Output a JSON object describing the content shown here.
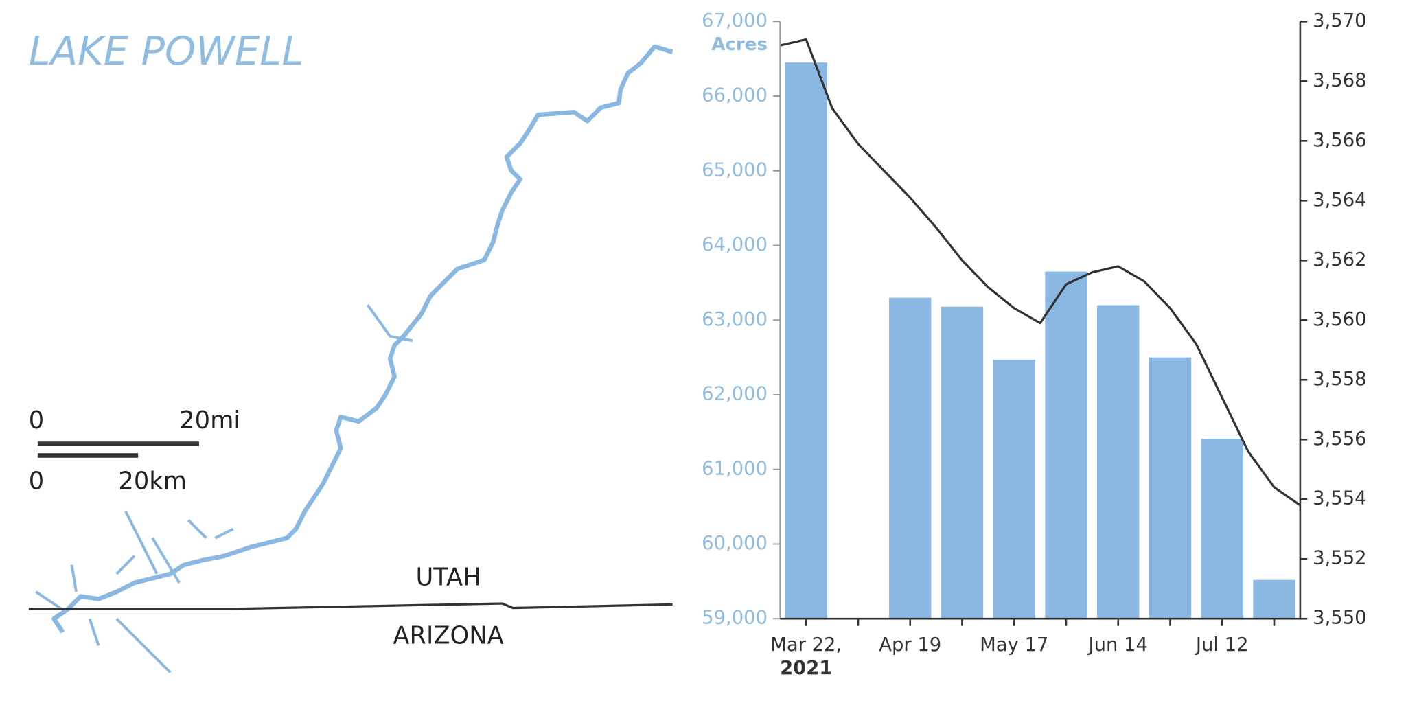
{
  "map": {
    "title": "LAKE POWELL",
    "scale_mi_start": "0",
    "scale_mi_end": "20mi",
    "scale_km_start": "0",
    "scale_km_end": "20km",
    "north_label": "UTAH",
    "south_label": "ARIZONA"
  },
  "chart_data": {
    "type": "bar",
    "y_label": "Acres",
    "year_label": "2021",
    "categories": [
      null,
      "Mar 22,",
      null,
      null,
      null,
      "Apr 19",
      null,
      null,
      null,
      "May 17",
      null,
      null,
      null,
      "Jun 14",
      null,
      null,
      null,
      "Jul 12",
      null,
      null,
      null
    ],
    "series": [
      {
        "type": "bar",
        "color": "#8ab8e3",
        "values": [
          null,
          66450,
          null,
          null,
          null,
          63300,
          null,
          63180,
          null,
          62470,
          null,
          63650,
          null,
          63200,
          null,
          62500,
          null,
          61410,
          null,
          59520,
          null
        ]
      },
      {
        "type": "line",
        "axis": "y2",
        "color": "#333333",
        "values": [
          3569.2,
          3569.4,
          3567.1,
          3565.9,
          3565.0,
          3564.1,
          3563.1,
          3562.0,
          3561.1,
          3560.4,
          3559.9,
          3561.2,
          3561.6,
          3561.8,
          3561.3,
          3560.4,
          3559.2,
          3557.4,
          3555.6,
          3554.4,
          3553.8
        ]
      }
    ],
    "ylim": [
      59000,
      67000
    ],
    "yticks": [
      {
        "value": 59000,
        "label": "59,000"
      },
      {
        "value": 60000,
        "label": "60,000"
      },
      {
        "value": 61000,
        "label": "61,000"
      },
      {
        "value": 62000,
        "label": "62,000"
      },
      {
        "value": 63000,
        "label": "63,000"
      },
      {
        "value": 64000,
        "label": "64,000"
      },
      {
        "value": 65000,
        "label": "65,000"
      },
      {
        "value": 66000,
        "label": "66,000"
      },
      {
        "value": 67000,
        "label": "67,000"
      }
    ],
    "y2lim": [
      3550,
      3570
    ],
    "y2ticks": [
      {
        "value": 3550,
        "label": "3,550"
      },
      {
        "value": 3552,
        "label": "3,552"
      },
      {
        "value": 3554,
        "label": "3,554"
      },
      {
        "value": 3556,
        "label": "3,556"
      },
      {
        "value": 3558,
        "label": "3,558"
      },
      {
        "value": 3560,
        "label": "3,560"
      },
      {
        "value": 3562,
        "label": "3,562"
      },
      {
        "value": 3564,
        "label": "3,564"
      },
      {
        "value": 3566,
        "label": "3,566"
      },
      {
        "value": 3568,
        "label": "3,568"
      },
      {
        "value": 3570,
        "label": "3,570"
      }
    ]
  }
}
